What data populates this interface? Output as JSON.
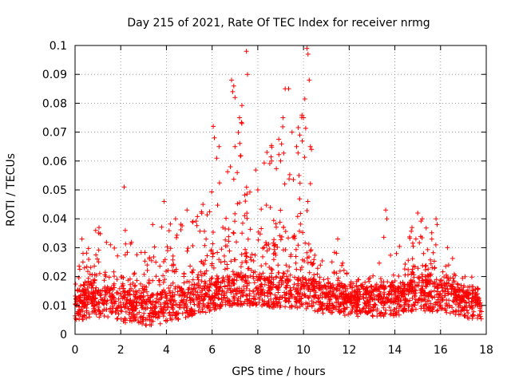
{
  "chart_data": {
    "type": "scatter",
    "title": "Day 215 of 2021, Rate Of TEC Index for receiver nrmg",
    "xlabel": "GPS time / hours",
    "ylabel": "ROTI / TECUs",
    "xlim": [
      0,
      18
    ],
    "ylim": [
      0,
      0.1
    ],
    "grid": true,
    "marker": "plus",
    "series_color": "#ff0000",
    "xticks": [
      0,
      2,
      4,
      6,
      8,
      10,
      12,
      14,
      16,
      18
    ],
    "xtick_labels": [
      "0",
      "2",
      "4",
      "6",
      "8",
      "10",
      "12",
      "14",
      "16",
      "18"
    ],
    "yticks": [
      0,
      0.01,
      0.02,
      0.03,
      0.04,
      0.05,
      0.06,
      0.07,
      0.08,
      0.09,
      0.1
    ],
    "ytick_labels": [
      "0",
      "0.01",
      "0.02",
      "0.03",
      "0.04",
      "0.05",
      "0.06",
      "0.07",
      "0.08",
      "0.09",
      "0.1"
    ],
    "data_range_hours": [
      0,
      17.8
    ],
    "envelope": {
      "x": [
        0,
        0.5,
        1,
        1.5,
        2,
        2.5,
        3,
        3.5,
        4,
        4.5,
        5,
        5.5,
        6,
        6.5,
        7,
        7.5,
        8,
        8.5,
        9,
        9.5,
        10,
        10.5,
        11,
        11.5,
        12,
        12.5,
        13,
        13.5,
        14,
        14.5,
        15,
        15.5,
        16,
        16.5,
        17,
        17.5,
        17.8
      ],
      "base": [
        0.01,
        0.01,
        0.011,
        0.01,
        0.009,
        0.009,
        0.008,
        0.008,
        0.009,
        0.01,
        0.011,
        0.012,
        0.013,
        0.014,
        0.015,
        0.015,
        0.014,
        0.014,
        0.014,
        0.014,
        0.014,
        0.013,
        0.012,
        0.012,
        0.011,
        0.011,
        0.011,
        0.011,
        0.011,
        0.012,
        0.013,
        0.013,
        0.012,
        0.012,
        0.011,
        0.01,
        0.01
      ],
      "upper": [
        0.022,
        0.03,
        0.036,
        0.032,
        0.035,
        0.032,
        0.03,
        0.035,
        0.04,
        0.038,
        0.04,
        0.042,
        0.05,
        0.06,
        0.085,
        0.08,
        0.06,
        0.065,
        0.08,
        0.06,
        0.09,
        0.035,
        0.025,
        0.03,
        0.02,
        0.02,
        0.02,
        0.035,
        0.028,
        0.035,
        0.04,
        0.038,
        0.035,
        0.03,
        0.02,
        0.02,
        0.015
      ]
    },
    "highlights": [
      {
        "x": 0.3,
        "y": 0.033
      },
      {
        "x": 0.35,
        "y": 0.028
      },
      {
        "x": 0.9,
        "y": 0.036
      },
      {
        "x": 1.05,
        "y": 0.037
      },
      {
        "x": 2.15,
        "y": 0.051
      },
      {
        "x": 2.2,
        "y": 0.036
      },
      {
        "x": 3.4,
        "y": 0.038
      },
      {
        "x": 3.9,
        "y": 0.046
      },
      {
        "x": 4.4,
        "y": 0.04
      },
      {
        "x": 4.9,
        "y": 0.043
      },
      {
        "x": 5.6,
        "y": 0.045
      },
      {
        "x": 6.05,
        "y": 0.072
      },
      {
        "x": 6.1,
        "y": 0.068
      },
      {
        "x": 6.2,
        "y": 0.061
      },
      {
        "x": 6.3,
        "y": 0.065
      },
      {
        "x": 6.85,
        "y": 0.088
      },
      {
        "x": 6.9,
        "y": 0.084
      },
      {
        "x": 6.95,
        "y": 0.086
      },
      {
        "x": 7.0,
        "y": 0.082
      },
      {
        "x": 7.2,
        "y": 0.075
      },
      {
        "x": 7.3,
        "y": 0.073
      },
      {
        "x": 7.5,
        "y": 0.098
      },
      {
        "x": 7.55,
        "y": 0.09
      },
      {
        "x": 7.0,
        "y": 0.065
      },
      {
        "x": 6.8,
        "y": 0.058
      },
      {
        "x": 7.1,
        "y": 0.056
      },
      {
        "x": 8.4,
        "y": 0.063
      },
      {
        "x": 8.6,
        "y": 0.06
      },
      {
        "x": 9.0,
        "y": 0.06
      },
      {
        "x": 9.1,
        "y": 0.075
      },
      {
        "x": 9.2,
        "y": 0.085
      },
      {
        "x": 9.35,
        "y": 0.085
      },
      {
        "x": 9.5,
        "y": 0.07
      },
      {
        "x": 9.7,
        "y": 0.065
      },
      {
        "x": 10.0,
        "y": 0.075
      },
      {
        "x": 10.15,
        "y": 0.099
      },
      {
        "x": 10.2,
        "y": 0.097
      },
      {
        "x": 10.25,
        "y": 0.088
      },
      {
        "x": 10.3,
        "y": 0.065
      },
      {
        "x": 10.35,
        "y": 0.064
      },
      {
        "x": 9.8,
        "y": 0.055
      },
      {
        "x": 8.0,
        "y": 0.05
      },
      {
        "x": 11.5,
        "y": 0.033
      },
      {
        "x": 13.6,
        "y": 0.043
      },
      {
        "x": 13.65,
        "y": 0.04
      },
      {
        "x": 15.0,
        "y": 0.042
      },
      {
        "x": 15.2,
        "y": 0.04
      },
      {
        "x": 15.8,
        "y": 0.04
      },
      {
        "x": 15.85,
        "y": 0.038
      },
      {
        "x": 16.3,
        "y": 0.03
      }
    ]
  }
}
